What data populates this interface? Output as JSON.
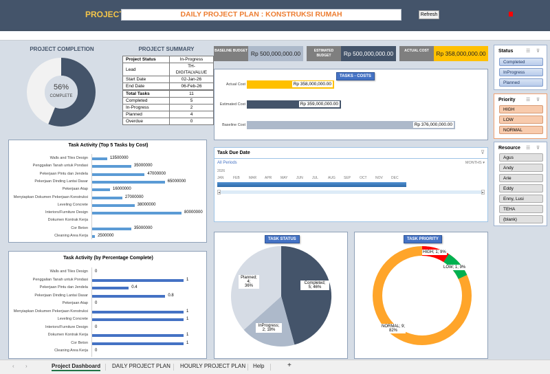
{
  "header": {
    "project_label": "PROJECT:",
    "project_title": "DAILY PROJECT PLAN : KONSTRUKSI RUMAH",
    "refresh_label": "Refresh"
  },
  "completion": {
    "title": "PROJECT COMPLETION",
    "percent": "56%",
    "caption": "COMPLETE",
    "value": 56
  },
  "summary": {
    "title": "PROJECT SUMMARY",
    "info": [
      {
        "label": "Project Status",
        "value": "In-Progress"
      },
      {
        "label": "Lead",
        "value": "TH-DIGITALVALUE"
      },
      {
        "label": "Start Date",
        "value": "02-Jan-26"
      },
      {
        "label": "End Date",
        "value": "06-Feb-26"
      }
    ],
    "counts": [
      {
        "label": "Total Tasks",
        "value": "11"
      },
      {
        "label": "Completed",
        "value": "5"
      },
      {
        "label": "In-Progress",
        "value": "2"
      },
      {
        "label": "Planned",
        "value": "4"
      },
      {
        "label": "Overdue",
        "value": "0"
      }
    ]
  },
  "kpis": {
    "baseline_label": "BASELINE BUDGET",
    "baseline_value": "Rp 500,000,000.00",
    "estimated_label": "ESTIMATED BUDGET",
    "estimated_value": "Rp 500,000,000.00",
    "actual_label": "ACTUAL COST",
    "actual_value": "Rp 358,000,000.00"
  },
  "costs": {
    "title": "TASKS - COSTS",
    "rows": [
      {
        "label": "Actual Cost",
        "value": "Rp 358,000,000.00",
        "color": "#ffc000"
      },
      {
        "label": "Estimated Cost",
        "value": "Rp 359,000,000.00",
        "color": "#44546a"
      },
      {
        "label": "Baseline Cost",
        "value": "Rp 376,000,000.00",
        "color": "#adb9ca"
      }
    ]
  },
  "timeline": {
    "title": "Task Due Date",
    "period": "All Periods",
    "unit": "MONTHS",
    "year": "2026",
    "months": [
      "JAN",
      "FEB",
      "MAR",
      "APR",
      "MAY",
      "JUN",
      "JUL",
      "AUG",
      "SEP",
      "OCT",
      "NOV",
      "DEC"
    ]
  },
  "slicers": {
    "status": {
      "title": "Status",
      "items": [
        "Completed",
        "InProgress",
        "Planned"
      ]
    },
    "priority": {
      "title": "Priority",
      "items": [
        "HIGH",
        "LOW",
        "NORMAL"
      ]
    },
    "resource": {
      "title": "Resource",
      "items": [
        "Agus",
        "Andy",
        "Arie",
        "Eddy",
        "Enny, Lusi",
        "TEHA",
        "(blank)"
      ]
    }
  },
  "chart_data": [
    {
      "type": "bar",
      "orientation": "horizontal",
      "title": "Task Activity (Top 5 Tasks by Cost)",
      "categories": [
        "Walls and Tiles Design",
        "Penggalian Tanah untuk Pondasi",
        "Pekerjaan Pintu dan Jendela",
        "Pekerjaan Dinding Lantai Dasar",
        "Pekerjaan Atap",
        "Menyiapkan Dokumen Pekerjaan Konstruksi",
        "Leveling Concrete",
        "Interiors/Furniture Design",
        "Dokumen Kontrak Kerja",
        "Cor Beton",
        "Cleaning Area Kerja"
      ],
      "values": [
        13500000,
        35000000,
        47000000,
        65000000,
        16000000,
        27000000,
        38000000,
        80000000,
        null,
        35000000,
        2500000
      ],
      "labels": [
        "13500000",
        "35000000",
        "47000000",
        "65000000",
        "16000000",
        "27000000",
        "38000000",
        "80000000",
        "",
        "35000000",
        "2500000"
      ],
      "color": "#5b9bd5"
    },
    {
      "type": "bar",
      "orientation": "horizontal",
      "title": "Task Activity (by Percentage Complete)",
      "categories": [
        "Walls and Tiles Design",
        "Penggalian Tanah untuk Pondasi",
        "Pekerjaan Pintu dan Jendela",
        "Pekerjaan Dinding Lantai Dasar",
        "Pekerjaan Atap",
        "Menyiapkan Dokumen Pekerjaan Konstruksi",
        "Leveling Concrete",
        "Interiors/Furniture Design",
        "Dokumen Kontrak Kerja",
        "Cor Beton",
        "Cleaning Area Kerja"
      ],
      "values": [
        0,
        1,
        0.4,
        0.8,
        0,
        1,
        1,
        0,
        1,
        1,
        0
      ],
      "labels": [
        "0",
        "1",
        "0.4",
        "0.8",
        "0",
        "1",
        "1",
        "0",
        "1",
        "1",
        "0"
      ],
      "color": "#4472c4"
    },
    {
      "type": "pie",
      "title": "TASK STATUS",
      "slices": [
        {
          "name": "Completed",
          "value": 5,
          "pct": "46%",
          "label": "Completed; 5; 46%",
          "color": "#44546a"
        },
        {
          "name": "InProgress",
          "value": 2,
          "pct": "18%",
          "label": "InProgress; 2; 18%",
          "color": "#adb9ca"
        },
        {
          "name": "Planned",
          "value": 4,
          "pct": "36%",
          "label": "Planned; 4; 36%",
          "color": "#d6dce5"
        }
      ]
    },
    {
      "type": "pie",
      "variant": "doughnut",
      "title": "TASK PRIORITY",
      "slices": [
        {
          "name": "HIGH",
          "value": 1,
          "pct": "9%",
          "label": "HIGH; 1; 9%",
          "color": "#ff0000"
        },
        {
          "name": "LOW",
          "value": 1,
          "pct": "9%",
          "label": "LOW; 1; 9%",
          "color": "#00b050"
        },
        {
          "name": "NORMAL",
          "value": 9,
          "pct": "82%",
          "label": "NORMAL; 9; 82%",
          "color": "#ffa52a"
        }
      ]
    }
  ],
  "sheet_tabs": [
    "Project Dashboard",
    "DAILY PROJECT PLAN",
    "HOURLY PROJECT PLAN",
    "Help"
  ],
  "active_tab": "Project Dashboard"
}
